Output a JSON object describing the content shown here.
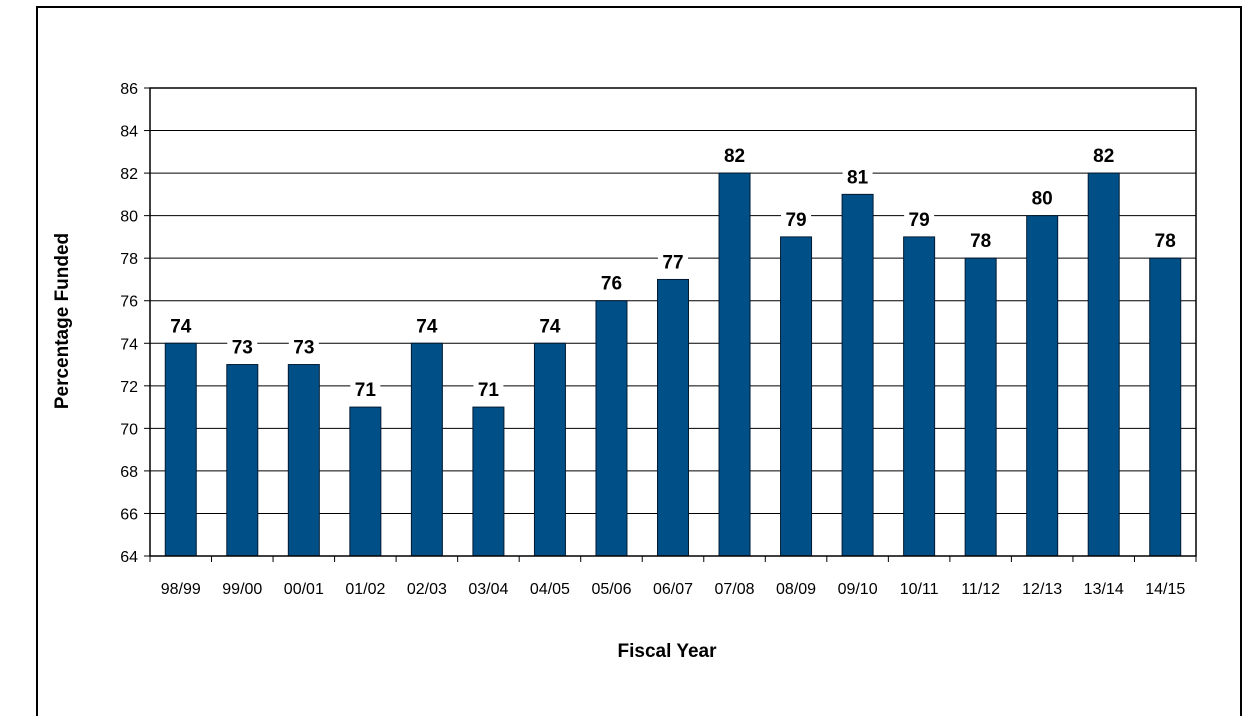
{
  "chart_data": {
    "type": "bar",
    "title": "",
    "xlabel": "Fiscal Year",
    "ylabel": "Percentage Funded",
    "ylim": [
      64,
      86
    ],
    "yticks": [
      64,
      66,
      68,
      70,
      72,
      74,
      76,
      78,
      80,
      82,
      84,
      86
    ],
    "grid": true,
    "legend": "none",
    "categories": [
      "98/99",
      "99/00",
      "00/01",
      "01/02",
      "02/03",
      "03/04",
      "04/05",
      "05/06",
      "06/07",
      "07/08",
      "08/09",
      "09/10",
      "10/11",
      "11/12",
      "12/13",
      "13/14",
      "14/15"
    ],
    "values": [
      74,
      73,
      73,
      71,
      74,
      71,
      74,
      76,
      77,
      82,
      79,
      81,
      79,
      78,
      80,
      82,
      78
    ],
    "bar_color": "#004f86",
    "bar_edge_color": "#001a33"
  }
}
